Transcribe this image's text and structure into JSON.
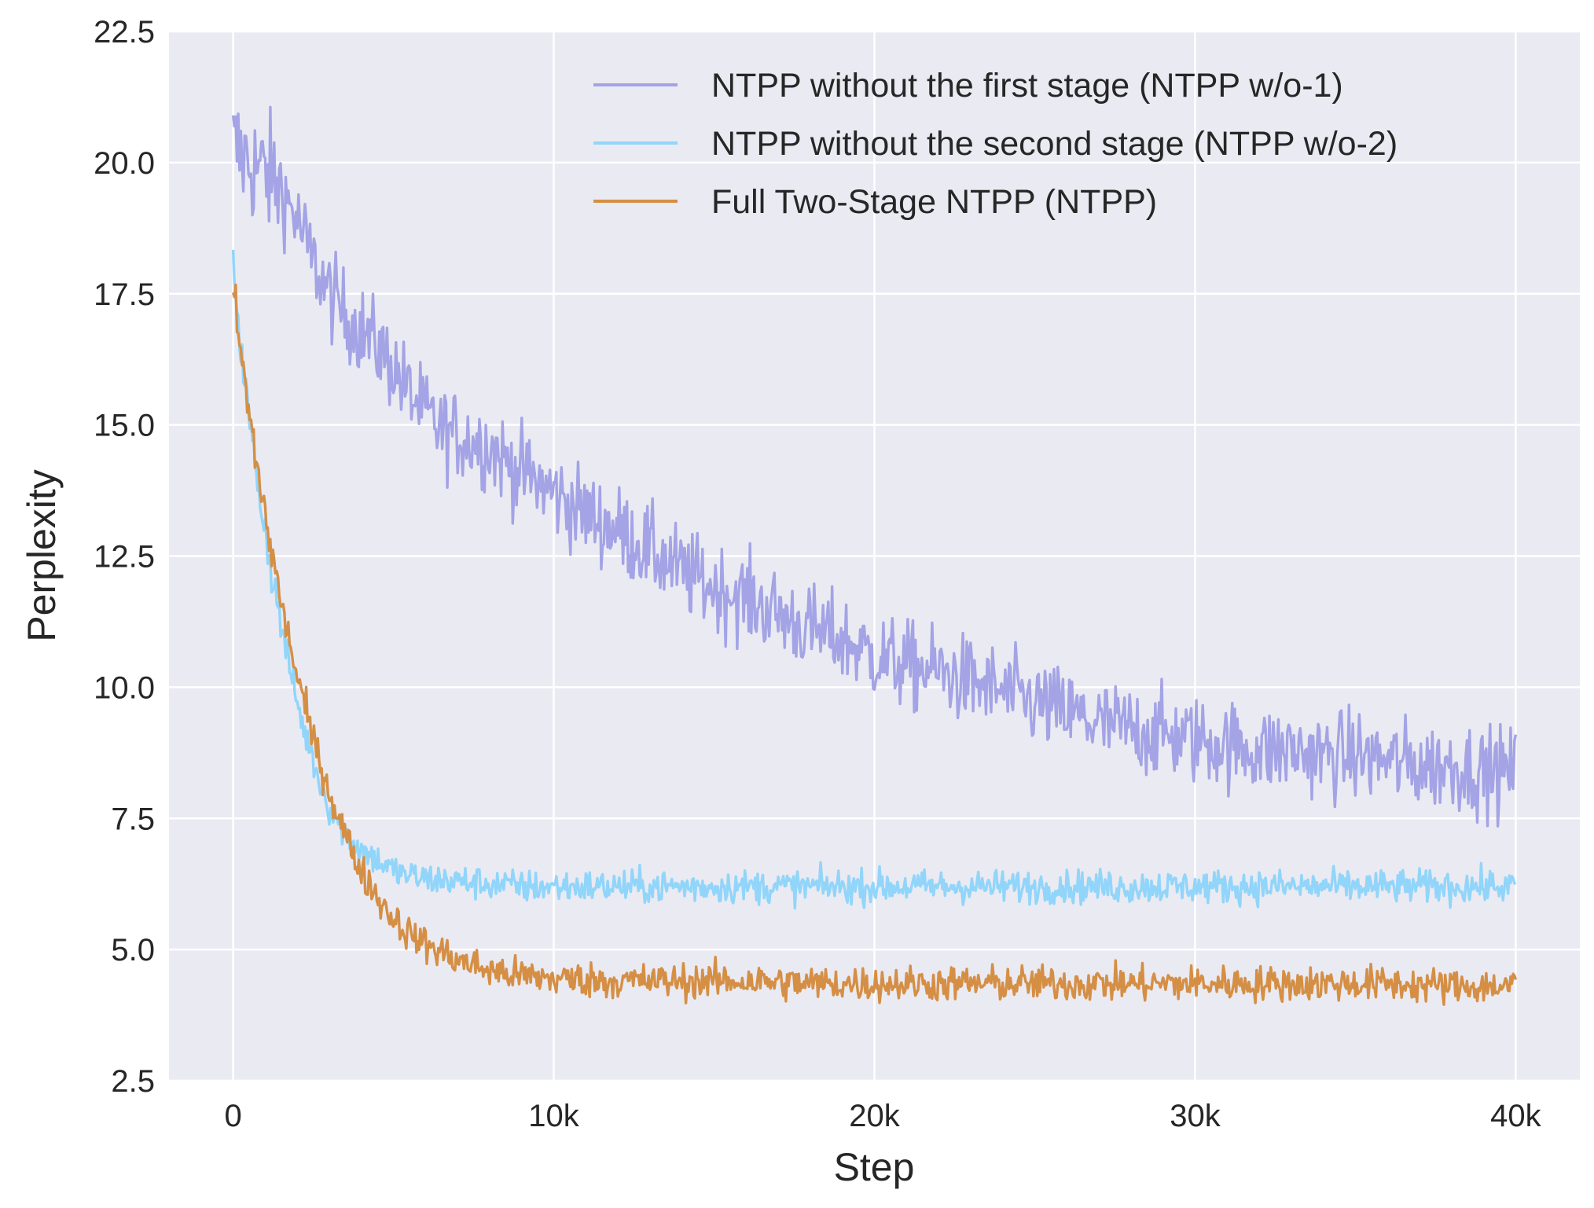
{
  "chart_data": {
    "type": "line",
    "title": "",
    "xlabel": "Step",
    "ylabel": "Perplexity",
    "xlim": [
      -2000,
      42000
    ],
    "ylim": [
      2.5,
      22.5
    ],
    "x_ticks": [
      0,
      10000,
      20000,
      30000,
      40000
    ],
    "x_tick_labels": [
      "0",
      "10k",
      "20k",
      "30k",
      "40k"
    ],
    "y_ticks": [
      2.5,
      5.0,
      7.5,
      10.0,
      12.5,
      15.0,
      17.5,
      20.0,
      22.5
    ],
    "y_tick_labels": [
      "2.5",
      "5.0",
      "7.5",
      "10.0",
      "12.5",
      "15.0",
      "17.5",
      "20.0",
      "22.5"
    ],
    "grid": true,
    "background": "#eaeaf2",
    "legend_position": "top-right",
    "series": [
      {
        "name": "NTPP without the first stage (NTPP w/o-1)",
        "color": "#a3a3e6",
        "x": [
          0,
          500,
          1000,
          1500,
          2000,
          2500,
          3000,
          3500,
          4000,
          4500,
          5000,
          5500,
          6000,
          6500,
          7000,
          7500,
          8000,
          8500,
          9000,
          9500,
          10000,
          11000,
          12000,
          13000,
          14000,
          15000,
          16000,
          17000,
          18000,
          19000,
          20000,
          21000,
          22000,
          23000,
          24000,
          25000,
          26000,
          27000,
          28000,
          29000,
          30000,
          31000,
          32000,
          33000,
          34000,
          35000,
          36000,
          37000,
          38000,
          39000,
          40000
        ],
        "values": [
          20.3,
          20.0,
          19.8,
          19.5,
          18.9,
          18.1,
          17.5,
          17.1,
          16.8,
          16.5,
          16.1,
          15.6,
          15.2,
          14.9,
          14.8,
          14.7,
          14.6,
          14.3,
          14.1,
          13.9,
          13.7,
          13.3,
          13.0,
          12.6,
          12.2,
          11.9,
          11.7,
          11.4,
          11.1,
          10.9,
          10.6,
          10.4,
          10.3,
          10.1,
          9.9,
          9.7,
          9.5,
          9.3,
          9.2,
          9.1,
          9.0,
          8.9,
          8.8,
          8.8,
          8.7,
          8.7,
          8.6,
          8.5,
          8.5,
          8.4,
          8.4
        ]
      },
      {
        "name": "NTPP without the second stage (NTPP w/o-2)",
        "color": "#91d5fa",
        "x": [
          0,
          250,
          500,
          750,
          1000,
          1250,
          1500,
          1750,
          2000,
          2250,
          2500,
          2750,
          3000,
          3500,
          4000,
          4500,
          5000,
          5500,
          6000,
          7000,
          8000,
          9000,
          10000,
          12000,
          14000,
          16000,
          18000,
          20000,
          22000,
          24000,
          26000,
          28000,
          30000,
          32000,
          34000,
          36000,
          38000,
          40000
        ],
        "values": [
          18.2,
          16.4,
          15.1,
          14.0,
          13.0,
          12.0,
          11.2,
          10.4,
          9.7,
          9.1,
          8.6,
          8.1,
          7.7,
          7.2,
          6.9,
          6.7,
          6.5,
          6.4,
          6.35,
          6.3,
          6.25,
          6.2,
          6.2,
          6.2,
          6.2,
          6.2,
          6.2,
          6.2,
          6.2,
          6.2,
          6.2,
          6.2,
          6.2,
          6.2,
          6.2,
          6.2,
          6.2,
          6.2
        ]
      },
      {
        "name": "Full Two-Stage NTPP (NTPP)",
        "color": "#d58f45",
        "x": [
          0,
          250,
          500,
          750,
          1000,
          1250,
          1500,
          1750,
          2000,
          2250,
          2500,
          2750,
          3000,
          3250,
          3500,
          3750,
          4000,
          4500,
          5000,
          5500,
          6000,
          6500,
          7000,
          7500,
          8000,
          9000,
          10000,
          12000,
          14000,
          16000,
          18000,
          20000,
          22000,
          24000,
          26000,
          28000,
          30000,
          32000,
          34000,
          36000,
          38000,
          40000
        ],
        "values": [
          17.6,
          16.3,
          15.2,
          14.2,
          13.3,
          12.4,
          11.6,
          10.9,
          10.2,
          9.6,
          9.0,
          8.5,
          8.0,
          7.6,
          7.2,
          6.8,
          6.5,
          6.0,
          5.6,
          5.3,
          5.1,
          4.95,
          4.8,
          4.7,
          4.6,
          4.5,
          4.45,
          4.4,
          4.4,
          4.4,
          4.35,
          4.35,
          4.35,
          4.35,
          4.35,
          4.35,
          4.35,
          4.35,
          4.35,
          4.35,
          4.3,
          4.3
        ]
      }
    ]
  }
}
